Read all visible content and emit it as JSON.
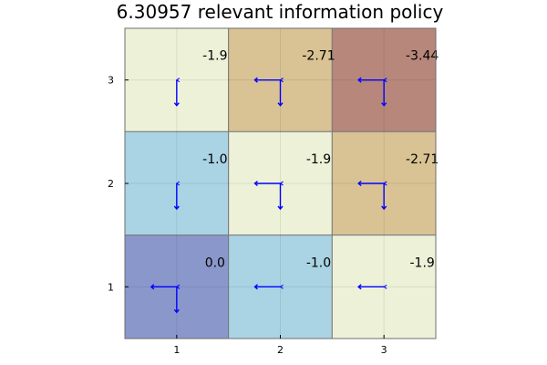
{
  "chart_data": {
    "type": "heatmap",
    "title": "6.30957 relevant information policy",
    "xlabel": "",
    "ylabel": "",
    "x_ticks": [
      "1",
      "2",
      "3"
    ],
    "y_ticks": [
      "1",
      "2",
      "3"
    ],
    "xlim": [
      0.5,
      3.5
    ],
    "ylim": [
      0.5,
      3.5
    ],
    "grid": true,
    "arrow_color": "#0000ff",
    "cells": [
      {
        "x": 1,
        "y": 3,
        "value": -1.9,
        "label": "-1.9",
        "color": "#ecf1d8",
        "arrows": [
          "down"
        ]
      },
      {
        "x": 2,
        "y": 3,
        "value": -2.71,
        "label": "-2.71",
        "color": "#d9c293",
        "arrows": [
          "left",
          "down"
        ]
      },
      {
        "x": 3,
        "y": 3,
        "value": -3.44,
        "label": "-3.44",
        "color": "#b6877a",
        "arrows": [
          "left",
          "down"
        ]
      },
      {
        "x": 1,
        "y": 2,
        "value": -1.0,
        "label": "-1.0",
        "color": "#aad3e4",
        "arrows": [
          "down"
        ]
      },
      {
        "x": 2,
        "y": 2,
        "value": -1.9,
        "label": "-1.9",
        "color": "#ecf1d8",
        "arrows": [
          "left",
          "down"
        ]
      },
      {
        "x": 3,
        "y": 2,
        "value": -2.71,
        "label": "-2.71",
        "color": "#d9c293",
        "arrows": [
          "left",
          "down"
        ]
      },
      {
        "x": 1,
        "y": 1,
        "value": 0.0,
        "label": "0.0",
        "color": "#8a97ca",
        "arrows": [
          "left",
          "down"
        ]
      },
      {
        "x": 2,
        "y": 1,
        "value": -1.0,
        "label": "-1.0",
        "color": "#aad3e4",
        "arrows": [
          "left"
        ]
      },
      {
        "x": 3,
        "y": 1,
        "value": -1.9,
        "label": "-1.9",
        "color": "#ecf1d8",
        "arrows": [
          "left"
        ]
      }
    ]
  }
}
